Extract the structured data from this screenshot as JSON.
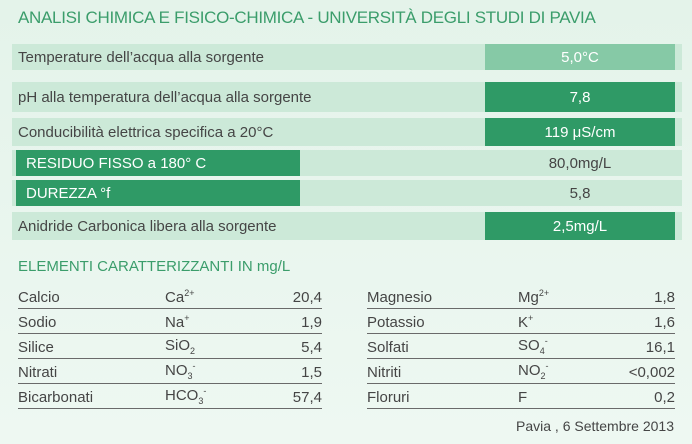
{
  "header": {
    "title": "ANALISI CHIMICA E FISICO-CHIMICA - UNIVERSITÀ DEGLI STUDI DI PAVIA"
  },
  "analysis": {
    "rows": [
      {
        "label": "Temperature dell’acqua alla sorgente",
        "value": "5,0°C"
      },
      {
        "label": "pH alla temperatura dell’acqua alla sorgente",
        "value": "7,8"
      },
      {
        "label": "Conducibilità elettrica specifica a 20°C",
        "value": "119 μS/cm"
      },
      {
        "label": "RESIDUO FISSO a 180° C",
        "value": "80,0mg/L"
      },
      {
        "label": "DUREZZA °f",
        "value": "5,8"
      },
      {
        "label": "Anidride Carbonica libera alla sorgente",
        "value": "2,5mg/L"
      }
    ]
  },
  "elements": {
    "title": "ELEMENTI CARATTERIZZANTI IN mg/L",
    "items": [
      {
        "name": "Calcio",
        "symbol": "Ca",
        "sup": "2+",
        "value": "20,4"
      },
      {
        "name": "Sodio",
        "symbol": "Na",
        "sup": "+",
        "value": "1,9"
      },
      {
        "name": "Silice",
        "symbol": "SiO",
        "sub": "2",
        "value": "5,4"
      },
      {
        "name": "Nitrati",
        "symbol": "NO",
        "sub": "3",
        "sup": "-",
        "value": "1,5"
      },
      {
        "name": "Bicarbonati",
        "symbol": "HCO",
        "sub": "3",
        "sup": "-",
        "value": "57,4"
      },
      {
        "name": "Magnesio",
        "symbol": "Mg",
        "sup": "2+",
        "value": "1,8"
      },
      {
        "name": "Potassio",
        "symbol": "K",
        "sup": "+",
        "value": "1,6"
      },
      {
        "name": "Solfati",
        "symbol": "SO",
        "sub": "4",
        "sup": "-",
        "value": "16,1"
      },
      {
        "name": "Nitriti",
        "symbol": "NO",
        "sub": "2",
        "sup": "-",
        "value": "<0,002"
      },
      {
        "name": "Floruri",
        "symbol": "F",
        "value": "0,2"
      }
    ]
  },
  "footer": {
    "text": "Pavia , 6 Settembre 2013"
  }
}
